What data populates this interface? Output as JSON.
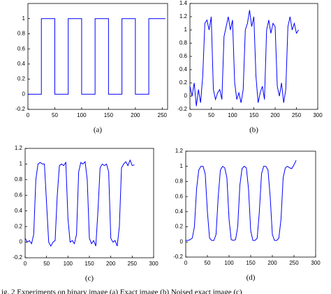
{
  "chart_data": [
    {
      "type": "line",
      "caption": "(a)",
      "color": "#0000ff",
      "x": [
        0,
        25,
        25,
        50,
        50,
        75,
        75,
        100,
        100,
        125,
        125,
        150,
        150,
        175,
        175,
        200,
        200,
        225,
        225,
        256
      ],
      "values": [
        0,
        0,
        1,
        1,
        0,
        0,
        1,
        1,
        0,
        0,
        1,
        1,
        0,
        0,
        1,
        1,
        0,
        0,
        1,
        1
      ],
      "xlim": [
        0,
        260
      ],
      "xticks": [
        0,
        50,
        100,
        150,
        200,
        250
      ],
      "ylim": [
        -0.2,
        1.2
      ],
      "yticks": [
        -0.2,
        0,
        0.2,
        0.4,
        0.6,
        0.8,
        1
      ]
    },
    {
      "type": "line",
      "caption": "(b)",
      "color": "#0000ff",
      "x": [
        0,
        5,
        10,
        15,
        20,
        25,
        30,
        35,
        40,
        45,
        50,
        55,
        60,
        65,
        70,
        75,
        80,
        85,
        90,
        95,
        100,
        105,
        110,
        115,
        120,
        125,
        130,
        135,
        140,
        145,
        150,
        155,
        160,
        165,
        170,
        175,
        180,
        185,
        190,
        195,
        200,
        205,
        210,
        215,
        220,
        225,
        230,
        235,
        240,
        245,
        250,
        255
      ],
      "values": [
        0.15,
        0,
        0.2,
        -0.15,
        0.1,
        -0.1,
        0.3,
        1.1,
        1.15,
        1,
        1.2,
        0.1,
        -0.05,
        0.05,
        0.1,
        -0.05,
        0.9,
        1.05,
        1.2,
        1,
        1.15,
        0.2,
        -0.05,
        0.05,
        -0.1,
        0.1,
        1,
        1.1,
        1.3,
        1.05,
        1.2,
        0.3,
        -0.1,
        0.05,
        0.15,
        -0.05,
        1,
        1.15,
        0.95,
        1.1,
        1.05,
        0.15,
        0,
        0.2,
        -0.1,
        0.1,
        1.05,
        1.2,
        1,
        1.1,
        0.95,
        1
      ],
      "xlim": [
        0,
        300
      ],
      "xticks": [
        0,
        50,
        100,
        150,
        200,
        250,
        300
      ],
      "ylim": [
        -0.2,
        1.4
      ],
      "yticks": [
        -0.2,
        0,
        0.2,
        0.4,
        0.6,
        0.8,
        1,
        1.2,
        1.4
      ]
    },
    {
      "type": "line",
      "caption": "(c)",
      "color": "#0000ff",
      "x": [
        0,
        5,
        10,
        15,
        20,
        25,
        30,
        35,
        40,
        45,
        50,
        55,
        60,
        65,
        70,
        75,
        80,
        85,
        90,
        95,
        100,
        105,
        110,
        115,
        120,
        125,
        130,
        135,
        140,
        145,
        150,
        155,
        160,
        165,
        170,
        175,
        180,
        185,
        190,
        195,
        200,
        205,
        210,
        215,
        220,
        225,
        230,
        235,
        240,
        245,
        250,
        255
      ],
      "values": [
        0.05,
        0,
        0.02,
        -0.02,
        0.1,
        0.8,
        1,
        1.02,
        1,
        1,
        0.5,
        0,
        -0.05,
        0,
        0.02,
        0.6,
        0.98,
        1,
        0.98,
        1.02,
        0.3,
        0,
        0.02,
        -0.02,
        0.1,
        0.9,
        1.02,
        1,
        1.03,
        0.8,
        0.05,
        -0.02,
        0.02,
        -0.05,
        0.4,
        0.95,
        1,
        0.98,
        1,
        0.9,
        0.05,
        0,
        0.02,
        -0.05,
        0.2,
        0.95,
        1,
        1.03,
        0.98,
        1.05,
        0.98,
        0.99
      ],
      "xlim": [
        0,
        300
      ],
      "xticks": [
        0,
        50,
        100,
        150,
        200,
        250,
        300
      ],
      "ylim": [
        -0.2,
        1.2
      ],
      "yticks": [
        -0.2,
        0,
        0.2,
        0.4,
        0.6,
        0.8,
        1,
        1.2
      ]
    },
    {
      "type": "line",
      "caption": "(d)",
      "color": "#0000ff",
      "x": [
        0,
        5,
        10,
        15,
        20,
        25,
        30,
        35,
        40,
        45,
        50,
        55,
        60,
        65,
        70,
        75,
        80,
        85,
        90,
        95,
        100,
        105,
        110,
        115,
        120,
        125,
        130,
        135,
        140,
        145,
        150,
        155,
        160,
        165,
        170,
        175,
        180,
        185,
        190,
        195,
        200,
        205,
        210,
        215,
        220,
        225,
        230,
        235,
        240,
        245,
        250,
        255
      ],
      "values": [
        0.02,
        0.02,
        0.03,
        0.05,
        0.2,
        0.7,
        0.95,
        1,
        1,
        0.9,
        0.4,
        0.05,
        0.02,
        0.02,
        0.1,
        0.6,
        0.95,
        1,
        0.98,
        0.85,
        0.3,
        0.03,
        0.02,
        0.03,
        0.2,
        0.75,
        0.97,
        1,
        0.98,
        0.7,
        0.15,
        0.02,
        0.02,
        0.05,
        0.4,
        0.9,
        1,
        1,
        0.95,
        0.6,
        0.1,
        0.02,
        0.02,
        0.05,
        0.3,
        0.85,
        0.98,
        1,
        0.98,
        0.97,
        1.02,
        1.08
      ],
      "xlim": [
        0,
        300
      ],
      "xticks": [
        0,
        50,
        100,
        150,
        200,
        250,
        300
      ],
      "ylim": [
        -0.2,
        1.2
      ],
      "yticks": [
        -0.2,
        0,
        0.2,
        0.4,
        0.6,
        0.8,
        1,
        1.2
      ]
    }
  ],
  "figure_caption": "ig. 2 Experiments on binary image (a) Exact image (b) Noised exact image (c)"
}
